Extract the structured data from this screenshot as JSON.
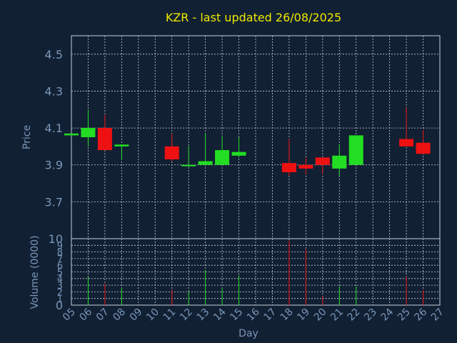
{
  "chart_data": {
    "type": "candlestick",
    "title": "KZR - last updated 26/08/2025",
    "xlabel": "Day",
    "ylabel": "Price",
    "volume_label": "Volume (0000)",
    "x_ticks": [
      "05",
      "06",
      "07",
      "08",
      "09",
      "10",
      "11",
      "12",
      "13",
      "14",
      "15",
      "16",
      "17",
      "18",
      "19",
      "20",
      "21",
      "22",
      "23",
      "24",
      "25",
      "26",
      "27"
    ],
    "price_ticks": [
      "3.7",
      "3.9",
      "4.1",
      "4.3",
      "4.5"
    ],
    "price_ylim": [
      3.5,
      4.6
    ],
    "volume_ticks": [
      "0",
      "1",
      "2",
      "3",
      "4",
      "5",
      "6",
      "7",
      "8",
      "9",
      "10"
    ],
    "volume_ylim": [
      0,
      10
    ],
    "grid": true,
    "colors": {
      "up": "#22dd22",
      "down": "#ee1111",
      "background": "#112033",
      "grid": "#c8d0dc",
      "axis_text": "#7a96b8",
      "title": "#f0e800"
    },
    "candles": [
      {
        "day": "05",
        "open": 4.06,
        "high": 4.07,
        "low": 4.06,
        "close": 4.07,
        "volume": 0
      },
      {
        "day": "06",
        "open": 4.05,
        "high": 4.2,
        "low": 4.0,
        "close": 4.1,
        "volume": 4.2
      },
      {
        "day": "07",
        "open": 4.1,
        "high": 4.17,
        "low": 3.98,
        "close": 3.98,
        "volume": 3.2
      },
      {
        "day": "08",
        "open": 4.0,
        "high": 4.01,
        "low": 3.93,
        "close": 4.01,
        "volume": 2.6
      },
      {
        "day": "11",
        "open": 4.0,
        "high": 4.07,
        "low": 3.92,
        "close": 3.93,
        "volume": 2.3
      },
      {
        "day": "12",
        "open": 3.9,
        "high": 4.0,
        "low": 3.89,
        "close": 3.9,
        "volume": 2.1
      },
      {
        "day": "13",
        "open": 3.9,
        "high": 4.07,
        "low": 3.9,
        "close": 3.92,
        "volume": 5.3
      },
      {
        "day": "14",
        "open": 3.9,
        "high": 4.06,
        "low": 3.9,
        "close": 3.98,
        "volume": 2.6
      },
      {
        "day": "15",
        "open": 3.95,
        "high": 4.05,
        "low": 3.94,
        "close": 3.97,
        "volume": 4.5
      },
      {
        "day": "18",
        "open": 3.91,
        "high": 4.04,
        "low": 3.84,
        "close": 3.86,
        "volume": 9.7
      },
      {
        "day": "19",
        "open": 3.9,
        "high": 3.94,
        "low": 3.85,
        "close": 3.88,
        "volume": 8.4
      },
      {
        "day": "20",
        "open": 3.94,
        "high": 3.94,
        "low": 3.85,
        "close": 3.9,
        "volume": 1.3
      },
      {
        "day": "21",
        "open": 3.88,
        "high": 4.01,
        "low": 3.84,
        "close": 3.95,
        "volume": 2.8
      },
      {
        "day": "22",
        "open": 3.9,
        "high": 4.06,
        "low": 3.9,
        "close": 4.06,
        "volume": 2.8
      },
      {
        "day": "25",
        "open": 4.04,
        "high": 4.21,
        "low": 4.0,
        "close": 4.0,
        "volume": 4.3
      },
      {
        "day": "26",
        "open": 4.02,
        "high": 4.09,
        "low": 3.96,
        "close": 3.96,
        "volume": 2.3
      }
    ]
  }
}
